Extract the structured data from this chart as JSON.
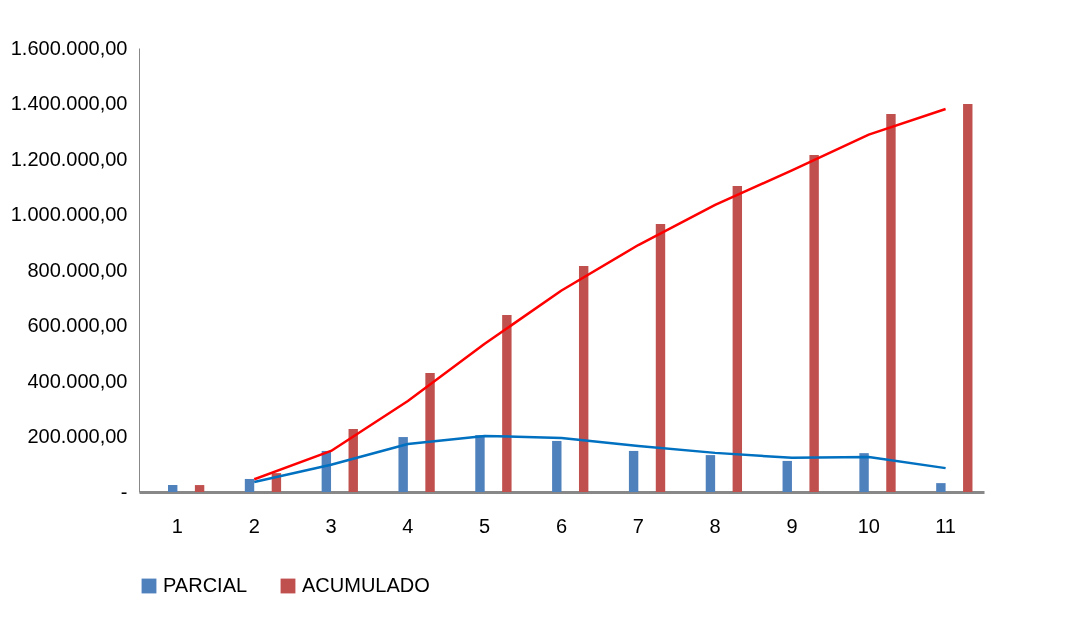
{
  "chart_data": {
    "type": "bar",
    "categories": [
      "1",
      "2",
      "3",
      "4",
      "5",
      "6",
      "7",
      "8",
      "9",
      "10",
      "11"
    ],
    "series": [
      {
        "name": "PARCIAL",
        "color": "#4f81bd",
        "values": [
          25000,
          47000,
          148000,
          198000,
          205000,
          184000,
          148000,
          133000,
          112000,
          140000,
          32000
        ]
      },
      {
        "name": "ACUMULADO",
        "color": "#c0504d",
        "values": [
          25000,
          68000,
          227000,
          429000,
          638000,
          814000,
          966000,
          1103000,
          1214000,
          1362000,
          1398000
        ]
      },
      {
        "type": "line",
        "color": "#0070c0",
        "values": [
          null,
          36000,
          98000,
          173000,
          202000,
          195000,
          166000,
          141000,
          123000,
          126000,
          86000
        ]
      },
      {
        "type": "line",
        "color": "#ff0000",
        "values": [
          null,
          46000,
          148000,
          328000,
          534000,
          726000,
          890000,
          1035000,
          1159000,
          1288000,
          1380000
        ]
      }
    ],
    "ylim": [
      0,
      1600000
    ],
    "yticks": [
      {
        "value": 0,
        "label": "-"
      },
      {
        "value": 200000,
        "label": "200.000,00"
      },
      {
        "value": 400000,
        "label": "400.000,00"
      },
      {
        "value": 600000,
        "label": "600.000,00"
      },
      {
        "value": 800000,
        "label": "800.000,00"
      },
      {
        "value": 1000000,
        "label": "1.000.000,00"
      },
      {
        "value": 1200000,
        "label": "1.200.000,00"
      },
      {
        "value": 1400000,
        "label": "1.400.000,00"
      },
      {
        "value": 1600000,
        "label": "1.600.000,00"
      }
    ],
    "grid": false,
    "legend": "bottom"
  }
}
